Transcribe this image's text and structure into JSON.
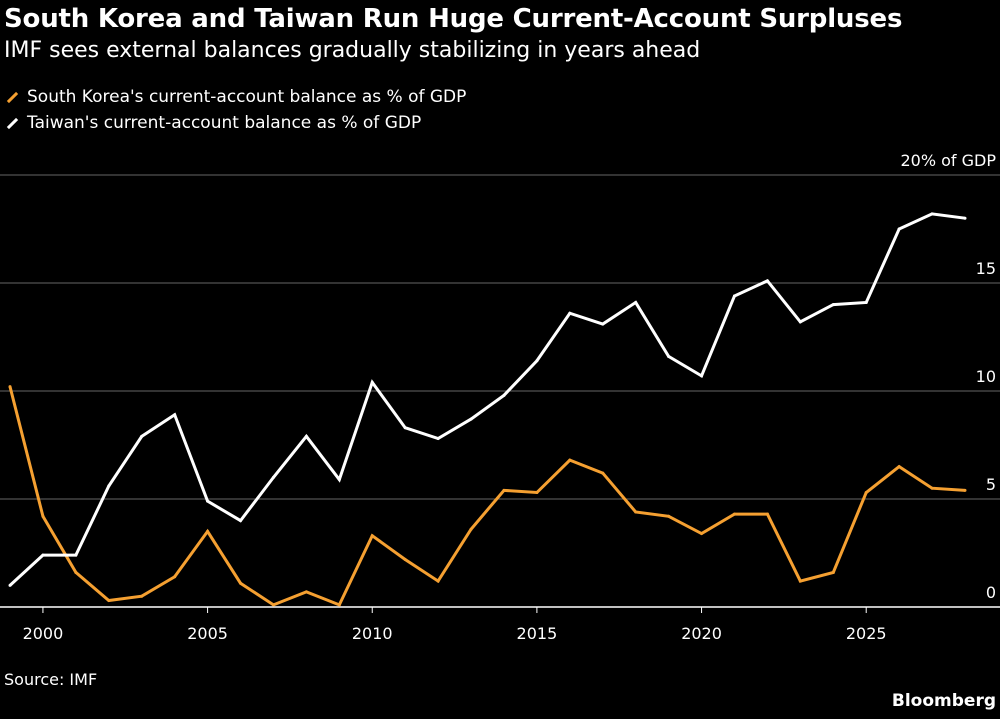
{
  "header": {
    "title": "South Korea and Taiwan Run Huge Current-Account Surpluses",
    "subtitle": "IMF sees external balances gradually stabilizing in years ahead"
  },
  "footer": {
    "source": "Source: IMF",
    "brand": "Bloomberg"
  },
  "colors": {
    "background": "#000000",
    "south_korea": "#f5a031",
    "taiwan": "#ffffff",
    "grid": "#666666"
  },
  "chart_data": {
    "type": "line",
    "title": "South Korea and Taiwan Run Huge Current-Account Surpluses",
    "subtitle": "IMF sees external balances gradually stabilizing in years ahead",
    "xlabel": "",
    "ylabel": "",
    "y_unit_label": "20% of GDP",
    "xlim": [
      1999,
      2028
    ],
    "ylim": [
      0,
      20
    ],
    "x_ticks": [
      2000,
      2005,
      2010,
      2015,
      2020,
      2025
    ],
    "x_tick_labels": [
      "2000",
      "2005",
      "2010",
      "2015",
      "2020",
      "2025"
    ],
    "y_ticks": [
      0,
      5,
      10,
      15,
      20
    ],
    "y_tick_labels": [
      "0",
      "5",
      "10",
      "15",
      "20% of GDP"
    ],
    "grid": true,
    "legend_position": "top-left",
    "x": [
      1999,
      2000,
      2001,
      2002,
      2003,
      2004,
      2005,
      2006,
      2007,
      2008,
      2009,
      2010,
      2011,
      2012,
      2013,
      2014,
      2015,
      2016,
      2017,
      2018,
      2019,
      2020,
      2021,
      2022,
      2023,
      2024,
      2025,
      2026,
      2027,
      2028
    ],
    "series": [
      {
        "name": "South Korea's current-account balance as % of GDP",
        "color": "#f5a031",
        "values": [
          10.2,
          4.2,
          1.6,
          0.3,
          0.5,
          1.4,
          3.5,
          1.1,
          0.1,
          0.7,
          0.1,
          3.3,
          2.2,
          1.2,
          3.6,
          5.4,
          5.3,
          6.8,
          6.2,
          4.4,
          4.2,
          3.4,
          4.3,
          4.3,
          1.2,
          1.6,
          5.3,
          6.5,
          5.5,
          5.4
        ]
      },
      {
        "name": "Taiwan's current-account balance as % of GDP",
        "color": "#ffffff",
        "values": [
          1.0,
          2.4,
          2.4,
          5.6,
          7.9,
          8.9,
          4.9,
          4.0,
          6.0,
          7.9,
          5.9,
          10.4,
          8.3,
          7.8,
          8.7,
          9.8,
          11.4,
          13.6,
          13.1,
          14.1,
          11.6,
          10.7,
          14.4,
          15.1,
          13.2,
          14.0,
          14.1,
          17.5,
          18.2,
          18.0
        ]
      }
    ]
  }
}
